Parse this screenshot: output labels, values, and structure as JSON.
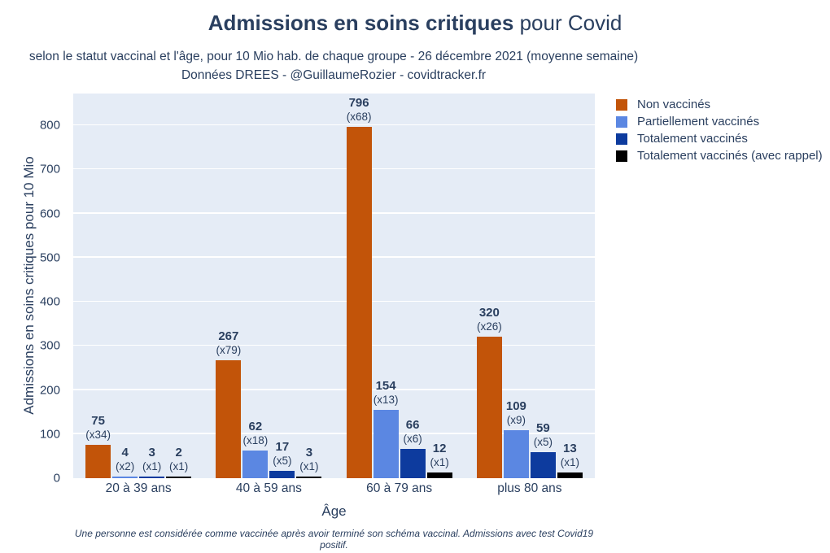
{
  "header": {
    "title_bold": "Admissions en soins critiques",
    "title_regular": " pour Covid",
    "subtitle_line1": "selon le statut vaccinal et l'âge, pour 10 Mio hab. de chaque groupe - 26 décembre 2021 (moyenne semaine)",
    "subtitle_line2": "Données DREES - @GuillaumeRozier - covidtracker.fr"
  },
  "footnote": "Une personne est considérée comme vaccinée après avoir terminé son schéma vaccinal. Admissions avec test Covid19 positif.",
  "chart_data": {
    "type": "bar",
    "title": "Admissions en soins critiques pour Covid",
    "xlabel": "Âge",
    "ylabel": "Admissions en soins critiques pour 10 Mio",
    "categories": [
      "20 à 39 ans",
      "40 à 59 ans",
      "60 à 79 ans",
      "plus 80 ans"
    ],
    "series": [
      {
        "name": "Non vaccinés",
        "color": "#c25409",
        "values": [
          75,
          267,
          796,
          320
        ],
        "multiplier_labels": [
          "(x34)",
          "(x79)",
          "(x68)",
          "(x26)"
        ]
      },
      {
        "name": "Partiellement vaccinés",
        "color": "#5b87e2",
        "values": [
          4,
          62,
          154,
          109
        ],
        "multiplier_labels": [
          "(x2)",
          "(x18)",
          "(x13)",
          "(x9)"
        ]
      },
      {
        "name": "Totalement vaccinés",
        "color": "#0d3b9e",
        "values": [
          3,
          17,
          66,
          59
        ],
        "multiplier_labels": [
          "(x1)",
          "(x5)",
          "(x6)",
          "(x5)"
        ]
      },
      {
        "name": "Totalement vaccinés (avec rappel)",
        "color": "#000000",
        "values": [
          2,
          3,
          12,
          13
        ],
        "multiplier_labels": [
          "(x1)",
          "(x1)",
          "(x1)",
          "(x1)"
        ]
      }
    ],
    "yticks": [
      0,
      100,
      200,
      300,
      400,
      500,
      600,
      700,
      800
    ],
    "ylim": [
      0,
      872
    ],
    "grid": true,
    "legend_position": "top-right",
    "plot_background": "#e5ecf6",
    "grid_color": "#ffffff",
    "text_color": "#2a3f5f"
  }
}
